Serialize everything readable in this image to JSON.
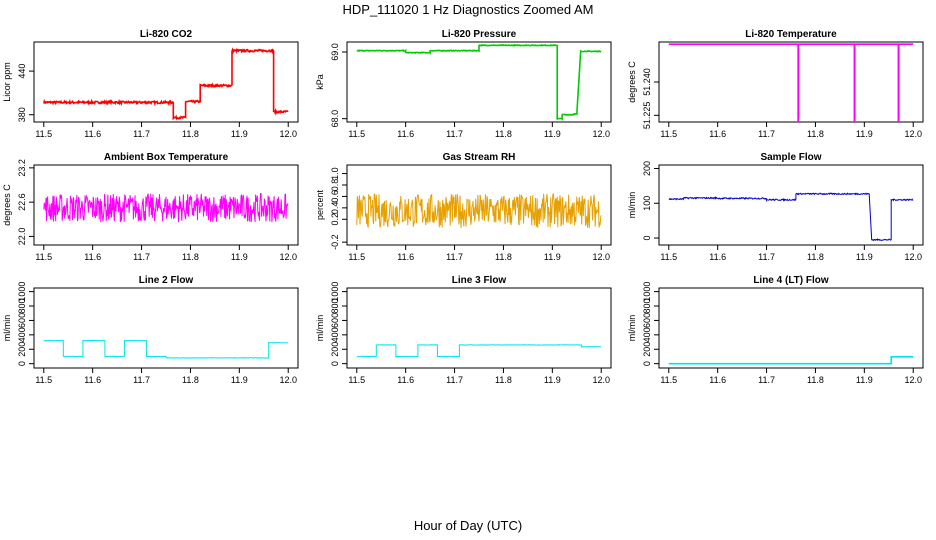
{
  "figure": {
    "title": "HDP_111020  1 Hz Diagnostics Zoomed AM",
    "xlabel": "Hour of Day (UTC)"
  },
  "chart_data": [
    {
      "type": "line",
      "title": "Li-820 CO2",
      "ylabel": "Licor ppm",
      "color": "#ff0000",
      "xlim": [
        11.48,
        12.02
      ],
      "ylim": [
        370,
        480
      ],
      "xticks": [
        11.5,
        11.6,
        11.7,
        11.8,
        11.9,
        12.0
      ],
      "yticks": [
        380,
        440
      ],
      "ytick_labels": [
        "380",
        "440"
      ],
      "noise": 1.5,
      "segments": [
        {
          "x": [
            11.5,
            11.755
          ],
          "y": 397
        },
        {
          "x": [
            11.755,
            11.765
          ],
          "y": 397
        },
        {
          "x": [
            11.765,
            11.79
          ],
          "y": 376
        },
        {
          "x": [
            11.79,
            11.82
          ],
          "y": 398
        },
        {
          "x": [
            11.82,
            11.86
          ],
          "y": 420
        },
        {
          "x": [
            11.86,
            11.885
          ],
          "y": 420
        },
        {
          "x": [
            11.885,
            11.96
          ],
          "y": 468
        },
        {
          "x": [
            11.96,
            11.97
          ],
          "y": 468
        },
        {
          "x": [
            11.97,
            12.0
          ],
          "y": 384
        }
      ]
    },
    {
      "type": "line",
      "title": "Li-820 Pressure",
      "ylabel": "kPa",
      "color": "#00cc00",
      "xlim": [
        11.48,
        12.02
      ],
      "ylim": [
        67.95,
        69.15
      ],
      "xticks": [
        11.5,
        11.6,
        11.7,
        11.8,
        11.9,
        12.0
      ],
      "yticks": [
        68.0,
        69.0
      ],
      "ytick_labels": [
        "68.0",
        "69.0"
      ],
      "noise": 0.005,
      "segments": [
        {
          "x": [
            11.5,
            11.6
          ],
          "y": 69.02
        },
        {
          "x": [
            11.6,
            11.65
          ],
          "y": 68.99
        },
        {
          "x": [
            11.65,
            11.75
          ],
          "y": 69.02
        },
        {
          "x": [
            11.75,
            11.91
          ],
          "y": 69.1
        },
        {
          "x": [
            11.91,
            11.92
          ],
          "y": 68.0
        },
        {
          "x": [
            11.92,
            11.945
          ],
          "y": 68.06
        },
        {
          "x": [
            11.945,
            11.95
          ],
          "y": 68.07
        },
        {
          "x": [
            11.958,
            12.0
          ],
          "y": 69.01
        }
      ]
    },
    {
      "type": "line",
      "title": "Li-820 Temperature",
      "ylabel": "degrees C",
      "color": "#ff00ff",
      "xlim": [
        11.48,
        12.02
      ],
      "ylim": [
        51.222,
        51.258
      ],
      "xticks": [
        11.5,
        11.6,
        11.7,
        11.8,
        11.9,
        12.0
      ],
      "yticks": [
        51.225,
        51.24
      ],
      "ytick_labels": [
        "51.225",
        "51.240"
      ],
      "noise": 0,
      "segments": [
        {
          "x": [
            11.5,
            12.0
          ],
          "y": 51.257
        }
      ],
      "spikes": [
        {
          "x": 11.765,
          "y": 51.222
        },
        {
          "x": 11.88,
          "y": 51.222
        },
        {
          "x": 11.97,
          "y": 51.222
        }
      ]
    },
    {
      "type": "line",
      "title": "Ambient Box Temperature",
      "ylabel": "degrees C",
      "color": "#ff00ff",
      "xlim": [
        11.48,
        12.02
      ],
      "ylim": [
        21.85,
        23.25
      ],
      "xticks": [
        11.5,
        11.6,
        11.7,
        11.8,
        11.9,
        12.0
      ],
      "yticks": [
        22.0,
        22.6,
        23.2
      ],
      "ytick_labels": [
        "22.0",
        "22.6",
        "23.2"
      ],
      "noise": 0.25,
      "segments": [
        {
          "x": [
            11.5,
            12.0
          ],
          "y": 22.5
        }
      ]
    },
    {
      "type": "line",
      "title": "Gas Stream RH",
      "ylabel": "percent",
      "color": "#e6a000",
      "xlim": [
        11.48,
        12.02
      ],
      "ylim": [
        -0.25,
        1.15
      ],
      "xticks": [
        11.5,
        11.6,
        11.7,
        11.8,
        11.9,
        12.0
      ],
      "yticks": [
        -0.2,
        0.2,
        0.4,
        0.6,
        0.8,
        1.0
      ],
      "ytick_labels": [
        "-0.2",
        "0.2",
        "0.4",
        "0.6",
        "0.8",
        "1.0"
      ],
      "noise": 0.3,
      "segments": [
        {
          "x": [
            11.5,
            12.0
          ],
          "y": 0.35
        }
      ]
    },
    {
      "type": "line",
      "title": "Sample Flow",
      "ylabel": "ml/min",
      "color": "#0000cc",
      "xlim": [
        11.48,
        12.02
      ],
      "ylim": [
        -20,
        210
      ],
      "xticks": [
        11.5,
        11.6,
        11.7,
        11.8,
        11.9,
        12.0
      ],
      "yticks": [
        0,
        100,
        200
      ],
      "ytick_labels": [
        "0",
        "100",
        "200"
      ],
      "noise": 2,
      "segments": [
        {
          "x": [
            11.5,
            11.53
          ],
          "y": 112
        },
        {
          "x": [
            11.53,
            11.6
          ],
          "y": 115
        },
        {
          "x": [
            11.6,
            11.7
          ],
          "y": 114
        },
        {
          "x": [
            11.7,
            11.76
          ],
          "y": 110
        },
        {
          "x": [
            11.76,
            11.91
          ],
          "y": 127
        },
        {
          "x": [
            11.915,
            11.955
          ],
          "y": -5
        },
        {
          "x": [
            11.955,
            12.0
          ],
          "y": 110
        }
      ]
    },
    {
      "type": "line",
      "title": "Line 2 Flow",
      "ylabel": "ml/min",
      "color": "#00e5e5",
      "xlim": [
        11.48,
        12.02
      ],
      "ylim": [
        -60,
        1050
      ],
      "xticks": [
        11.5,
        11.6,
        11.7,
        11.8,
        11.9,
        12.0
      ],
      "yticks": [
        0,
        200,
        400,
        600,
        800,
        1000
      ],
      "ytick_labels": [
        "0",
        "200",
        "400",
        "600",
        "800",
        "1000"
      ],
      "noise": 3,
      "segments": [
        {
          "x": [
            11.5,
            11.54
          ],
          "y": 320
        },
        {
          "x": [
            11.54,
            11.58
          ],
          "y": 100
        },
        {
          "x": [
            11.58,
            11.625
          ],
          "y": 320
        },
        {
          "x": [
            11.625,
            11.665
          ],
          "y": 100
        },
        {
          "x": [
            11.665,
            11.71
          ],
          "y": 320
        },
        {
          "x": [
            11.71,
            11.75
          ],
          "y": 100
        },
        {
          "x": [
            11.75,
            11.96
          ],
          "y": 80
        },
        {
          "x": [
            11.96,
            12.0
          ],
          "y": 290
        }
      ]
    },
    {
      "type": "line",
      "title": "Line 3 Flow",
      "ylabel": "ml/min",
      "color": "#00e5e5",
      "xlim": [
        11.48,
        12.02
      ],
      "ylim": [
        -60,
        1050
      ],
      "xticks": [
        11.5,
        11.6,
        11.7,
        11.8,
        11.9,
        12.0
      ],
      "yticks": [
        0,
        200,
        400,
        600,
        800,
        1000
      ],
      "ytick_labels": [
        "0",
        "200",
        "400",
        "600",
        "800",
        "1000"
      ],
      "noise": 3,
      "segments": [
        {
          "x": [
            11.5,
            11.54
          ],
          "y": 100
        },
        {
          "x": [
            11.54,
            11.58
          ],
          "y": 260
        },
        {
          "x": [
            11.58,
            11.625
          ],
          "y": 100
        },
        {
          "x": [
            11.625,
            11.665
          ],
          "y": 260
        },
        {
          "x": [
            11.665,
            11.71
          ],
          "y": 100
        },
        {
          "x": [
            11.71,
            11.96
          ],
          "y": 260
        },
        {
          "x": [
            11.96,
            12.0
          ],
          "y": 235
        }
      ]
    },
    {
      "type": "line",
      "title": "Line 4 (LT) Flow",
      "ylabel": "ml/min",
      "color": "#00e5e5",
      "xlim": [
        11.48,
        12.02
      ],
      "ylim": [
        -60,
        1050
      ],
      "xticks": [
        11.5,
        11.6,
        11.7,
        11.8,
        11.9,
        12.0
      ],
      "yticks": [
        0,
        200,
        400,
        600,
        800,
        1000
      ],
      "ytick_labels": [
        "0",
        "200",
        "400",
        "600",
        "800",
        "1000"
      ],
      "noise": 0,
      "segments": [
        {
          "x": [
            11.5,
            11.955
          ],
          "y": 0
        },
        {
          "x": [
            11.955,
            12.0
          ],
          "y": 95
        }
      ]
    }
  ]
}
